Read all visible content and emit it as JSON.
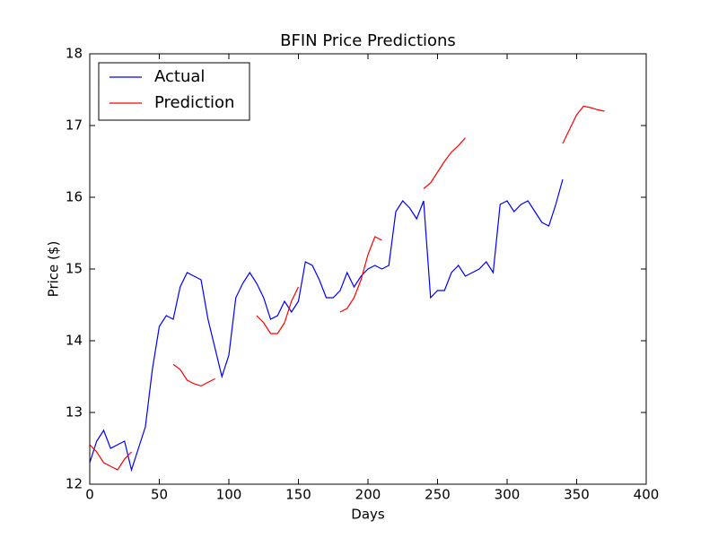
{
  "chart_data": {
    "type": "line",
    "title": "BFIN Price Predictions",
    "xlabel": "Days",
    "ylabel": "Price ($)",
    "x": [
      0,
      5,
      10,
      15,
      20,
      25,
      30,
      35,
      40,
      45,
      50,
      55,
      60,
      65,
      70,
      75,
      80,
      85,
      90,
      95,
      100,
      105,
      110,
      115,
      120,
      125,
      130,
      135,
      140,
      145,
      150,
      155,
      160,
      165,
      170,
      175,
      180,
      185,
      190,
      195,
      200,
      205,
      210,
      215,
      220,
      225,
      230,
      235,
      240,
      245,
      250,
      255,
      260,
      265,
      270,
      275,
      280,
      285,
      290,
      295,
      300,
      305,
      310,
      315,
      320,
      325,
      330,
      335,
      340,
      345,
      350,
      355,
      360,
      365,
      370
    ],
    "series": [
      {
        "name": "Actual",
        "color": "#0000ff",
        "values": [
          12.3,
          12.6,
          12.75,
          12.5,
          12.55,
          12.6,
          12.2,
          12.5,
          12.8,
          13.6,
          14.2,
          14.35,
          14.3,
          14.75,
          14.95,
          14.9,
          14.85,
          14.3,
          13.9,
          13.5,
          13.8,
          14.6,
          14.8,
          14.95,
          14.8,
          14.6,
          14.3,
          14.35,
          14.55,
          14.4,
          14.55,
          15.1,
          15.05,
          14.85,
          14.6,
          14.6,
          14.7,
          14.95,
          14.75,
          14.9,
          15.0,
          15.05,
          15.0,
          15.05,
          15.8,
          15.95,
          15.85,
          15.7,
          15.95,
          14.6,
          14.7,
          14.7,
          14.95,
          15.05,
          14.9,
          14.95,
          15.0,
          15.1,
          14.95,
          15.9,
          15.95,
          15.8,
          15.9,
          15.95,
          15.8,
          15.65,
          15.6,
          15.9,
          16.25,
          null,
          null,
          null,
          null,
          null,
          null
        ]
      },
      {
        "name": "Prediction",
        "color": "#ff0000",
        "values": [
          12.55,
          12.45,
          12.3,
          12.25,
          12.2,
          12.35,
          12.45,
          null,
          null,
          null,
          null,
          null,
          13.67,
          13.6,
          13.45,
          13.4,
          13.37,
          13.42,
          13.47,
          null,
          null,
          null,
          null,
          null,
          14.35,
          14.25,
          14.1,
          14.1,
          14.25,
          14.55,
          14.75,
          null,
          null,
          null,
          null,
          null,
          14.4,
          14.45,
          14.6,
          14.85,
          15.2,
          15.45,
          15.4,
          null,
          null,
          null,
          null,
          null,
          16.12,
          16.2,
          16.35,
          16.5,
          16.63,
          16.72,
          16.83,
          null,
          null,
          null,
          null,
          null,
          null,
          null,
          null,
          null,
          null,
          null,
          null,
          null,
          16.75,
          16.95,
          17.15,
          17.27,
          17.25,
          17.22,
          17.2
        ]
      }
    ],
    "xlim": [
      0,
      400
    ],
    "xticks": [
      0,
      50,
      100,
      150,
      200,
      250,
      300,
      350,
      400
    ],
    "ylim": [
      12,
      18
    ],
    "yticks": [
      12,
      13,
      14,
      15,
      16,
      17,
      18
    ],
    "legend": "upper left"
  }
}
